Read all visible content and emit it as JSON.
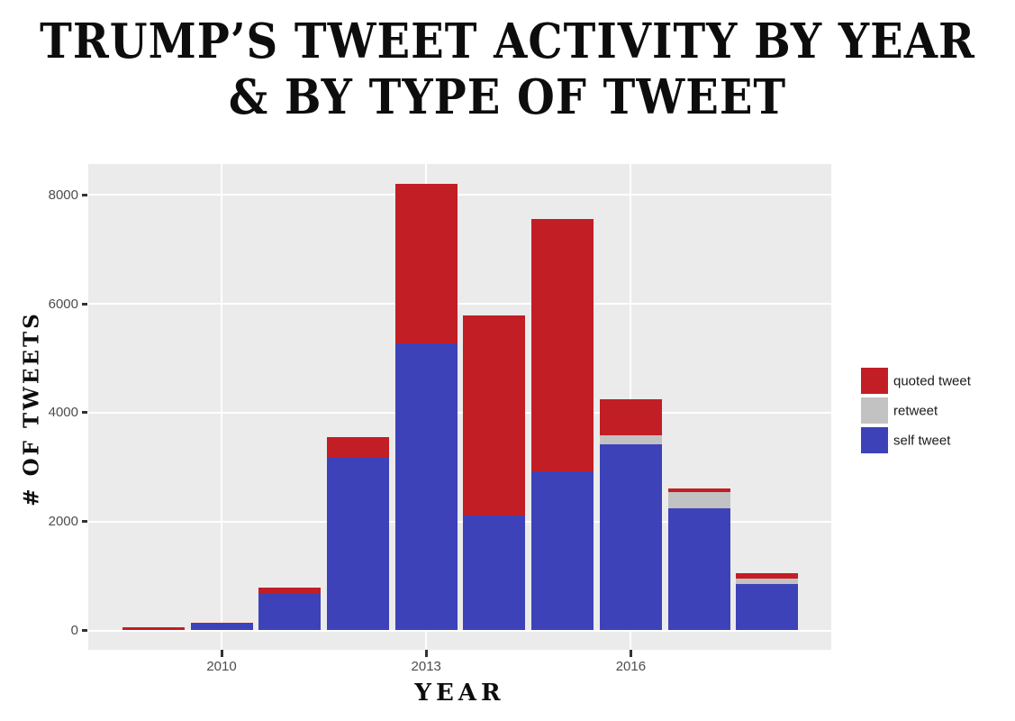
{
  "header": {
    "line1": "TRUMP’S TWEET ACTIVITY BY YEAR",
    "line2": "& BY TYPE OF TWEET"
  },
  "axes": {
    "y_title": "# OF TWEETS",
    "x_title": "YEAR"
  },
  "legend": {
    "items": [
      {
        "label": "quoted tweet",
        "color": "#C21E25"
      },
      {
        "label": "retweet",
        "color": "#C2C2C2"
      },
      {
        "label": "self tweet",
        "color": "#3D42B8"
      }
    ]
  },
  "chart_data": {
    "type": "bar",
    "stacked": true,
    "title": "TRUMP'S TWEET ACTIVITY BY YEAR & BY TYPE OF TWEET",
    "xlabel": "YEAR",
    "ylabel": "# OF TWEETS",
    "categories": [
      2009,
      2010,
      2011,
      2012,
      2013,
      2014,
      2015,
      2016,
      2017,
      2018
    ],
    "series": [
      {
        "name": "self tweet",
        "color": "#3D42B8",
        "values": [
          30,
          120,
          670,
          3165,
          5270,
          2110,
          2920,
          3420,
          2240,
          860
        ]
      },
      {
        "name": "retweet",
        "color": "#C2C2C2",
        "values": [
          0,
          0,
          0,
          0,
          0,
          0,
          0,
          170,
          300,
          90
        ]
      },
      {
        "name": "quoted tweet",
        "color": "#C21E25",
        "values": [
          30,
          20,
          115,
          385,
          2930,
          3670,
          4630,
          650,
          70,
          100
        ]
      }
    ],
    "totals": [
      60,
      140,
      785,
      3550,
      8200,
      5780,
      7550,
      4240,
      2610,
      1050
    ],
    "y_ticks": [
      0,
      2000,
      4000,
      6000,
      8000
    ],
    "x_ticks": [
      "2010",
      "2013",
      "2016"
    ],
    "ylim": [
      -360,
      8570
    ],
    "grid": true,
    "panel_background": "#EBEBEB",
    "grid_color": "#FFFFFF",
    "legend_position": "right"
  }
}
